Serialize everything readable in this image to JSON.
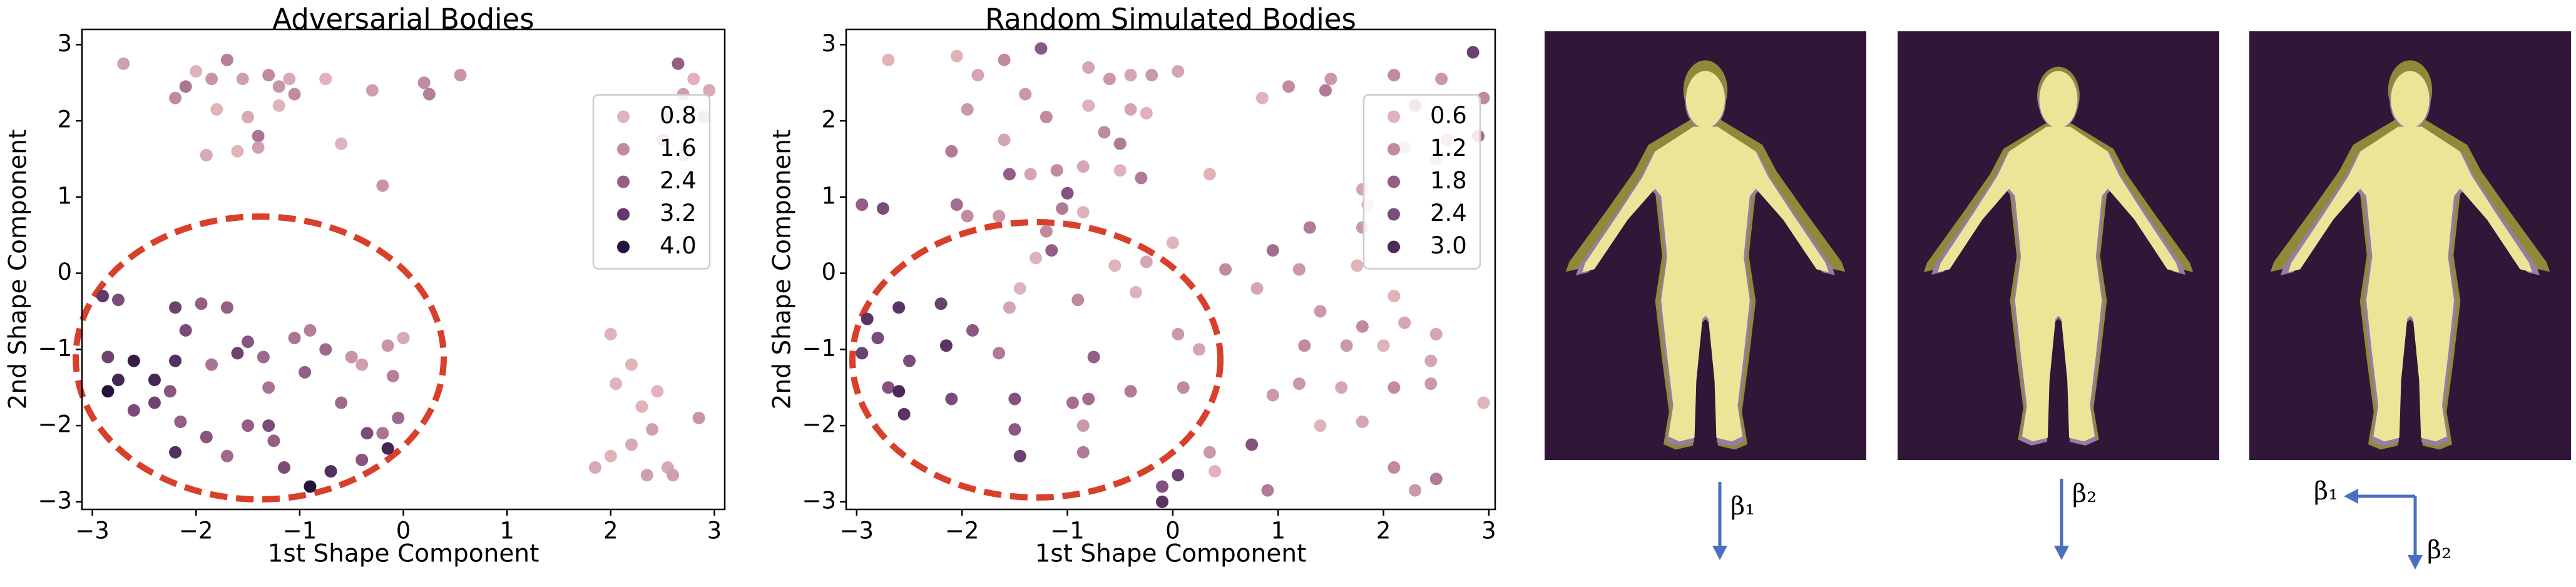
{
  "chart_data": [
    {
      "type": "scatter",
      "title": "Adversarial Bodies",
      "xlabel": "1st Shape Component",
      "ylabel": "2nd Shape Component",
      "x": [
        -2.7,
        -2.2,
        -2.1,
        -2.0,
        -1.85,
        -1.7,
        -1.8,
        -1.9,
        -1.55,
        -1.5,
        -1.4,
        -1.4,
        -1.6,
        -1.3,
        -1.1,
        -1.2,
        -1.05,
        -1.2,
        -0.75,
        -0.6,
        -0.3,
        -0.2,
        0.2,
        0.25,
        0.55,
        2.65,
        2.55,
        2.7,
        2.8,
        2.95,
        2.9,
        2.7,
        2.5,
        2.0,
        2.2,
        2.05,
        2.3,
        2.45,
        2.4,
        2.2,
        2.0,
        1.85,
        2.35,
        2.55,
        2.6,
        2.85,
        -2.9,
        -2.75,
        -2.85,
        -2.75,
        -2.6,
        -2.85,
        -2.6,
        -2.4,
        -2.4,
        -2.2,
        -2.25,
        -2.15,
        -2.2,
        -2.1,
        -2.2,
        -1.95,
        -1.85,
        -1.9,
        -1.7,
        -1.6,
        -1.7,
        -1.5,
        -1.35,
        -1.3,
        -1.25,
        -1.05,
        -0.9,
        -0.95,
        -1.15,
        -0.9,
        -0.7,
        -0.75,
        -0.6,
        -0.5,
        -0.4,
        -0.4,
        -0.35,
        -0.15,
        -0.05,
        -0.1,
        -0.15,
        0.0,
        -0.2,
        -1.3,
        -1.5
      ],
      "y": [
        2.75,
        2.3,
        2.45,
        2.65,
        2.55,
        2.8,
        2.15,
        1.55,
        2.55,
        2.05,
        1.8,
        1.65,
        1.6,
        2.6,
        2.55,
        2.45,
        2.35,
        2.2,
        2.55,
        1.7,
        2.4,
        1.15,
        2.5,
        2.35,
        2.6,
        2.75,
        2.05,
        2.35,
        2.55,
        2.4,
        2.05,
        1.55,
        1.75,
        -0.8,
        -1.2,
        -1.45,
        -1.75,
        -1.55,
        -2.05,
        -2.25,
        -2.4,
        -2.55,
        -2.65,
        -2.55,
        -2.65,
        -1.9,
        -0.3,
        -0.35,
        -1.1,
        -1.4,
        -1.15,
        -1.55,
        -1.8,
        -1.4,
        -1.7,
        -1.15,
        -1.55,
        -1.95,
        -0.45,
        -0.75,
        -2.35,
        -0.4,
        -1.2,
        -2.15,
        -0.45,
        -1.05,
        -2.4,
        -0.9,
        -1.1,
        -1.5,
        -2.2,
        -0.85,
        -0.75,
        -1.3,
        -2.55,
        -2.8,
        -2.6,
        -1.0,
        -1.7,
        -1.1,
        -1.2,
        -2.45,
        -2.1,
        -2.3,
        -1.9,
        -1.35,
        -0.95,
        -0.85,
        -2.1,
        -2.0,
        -2.0
      ],
      "hue": [
        1.2,
        1.6,
        2.0,
        0.8,
        1.4,
        1.8,
        0.6,
        1.0,
        1.2,
        1.0,
        2.0,
        1.2,
        0.6,
        1.6,
        1.0,
        1.4,
        1.6,
        0.8,
        0.8,
        0.6,
        1.2,
        1.4,
        1.6,
        1.8,
        1.4,
        2.4,
        1.4,
        1.2,
        0.8,
        1.0,
        1.6,
        1.2,
        1.6,
        0.8,
        0.6,
        0.6,
        0.8,
        0.8,
        1.2,
        1.0,
        0.8,
        1.0,
        1.2,
        1.0,
        1.2,
        1.4,
        3.2,
        2.8,
        3.0,
        3.6,
        3.8,
        4.0,
        2.8,
        3.6,
        3.0,
        3.4,
        2.6,
        2.4,
        3.0,
        2.8,
        3.4,
        2.4,
        2.0,
        2.6,
        2.4,
        3.0,
        2.2,
        2.6,
        2.2,
        2.0,
        2.4,
        2.0,
        1.8,
        2.4,
        2.8,
        4.0,
        3.4,
        2.2,
        2.2,
        1.4,
        1.2,
        2.6,
        2.8,
        3.6,
        2.2,
        1.8,
        1.4,
        1.0,
        2.0,
        2.8,
        2.4
      ],
      "xlim": [
        -3.1,
        3.1
      ],
      "ylim": [
        -3.1,
        3.2
      ],
      "xticks": [
        {
          "value": -3,
          "label": "−3"
        },
        {
          "value": -2,
          "label": "−2"
        },
        {
          "value": -1,
          "label": "−1"
        },
        0,
        1,
        2,
        3
      ],
      "yticks": [
        {
          "value": -3,
          "label": "−3"
        },
        {
          "value": -2,
          "label": "−2"
        },
        {
          "value": -1,
          "label": "−1"
        },
        0,
        1,
        2,
        3
      ],
      "legend": [
        {
          "value": 0.8,
          "color": "#dfb3b9"
        },
        {
          "value": 1.6,
          "color": "#c08aa0"
        },
        {
          "value": 2.4,
          "color": "#945e86"
        },
        {
          "value": 3.2,
          "color": "#623a69"
        },
        {
          "value": 4,
          "label": "4.0",
          "color": "#25143a"
        }
      ],
      "legend_position": "center right"
    },
    {
      "type": "scatter",
      "title": "Random Simulated Bodies",
      "xlabel": "1st Shape Component",
      "ylabel": "2nd Shape Component",
      "x": [
        -2.7,
        -2.05,
        -1.85,
        -1.6,
        -1.95,
        -2.1,
        -1.6,
        -1.4,
        -1.2,
        -1.25,
        -0.8,
        -0.6,
        -0.4,
        -0.2,
        -0.8,
        -0.65,
        -0.4,
        -0.25,
        -0.5,
        0.05,
        -1.1,
        -0.85,
        -0.5,
        -0.3,
        -1.55,
        -1.35,
        -1.0,
        -1.05,
        -0.85,
        -1.65,
        -1.95,
        -2.05,
        -2.75,
        -2.95,
        -1.3,
        -1.2,
        -1.15,
        -0.55,
        -0.25,
        0.0,
        0.35,
        0.85,
        1.1,
        1.5,
        1.45,
        2.1,
        2.3,
        2.55,
        2.85,
        2.95,
        2.9,
        2.6,
        2.5,
        2.2,
        1.8,
        1.85,
        1.8,
        1.3,
        0.95,
        0.5,
        0.8,
        1.2,
        1.75,
        1.4,
        1.8,
        2.1,
        2.2,
        2.5,
        2.0,
        1.65,
        1.25,
        2.45,
        2.1,
        2.45,
        1.2,
        1.6,
        1.8,
        1.4,
        0.95,
        0.75,
        0.9,
        0.35,
        0.1,
        0.05,
        0.25,
        0.4,
        2.1,
        2.3,
        2.5,
        2.95,
        -2.9,
        -2.8,
        -2.95,
        -2.6,
        -2.5,
        -2.7,
        -2.6,
        -2.2,
        -2.15,
        -2.1,
        -1.9,
        -1.65,
        -1.5,
        -1.5,
        -1.45,
        -0.95,
        -0.75,
        -0.8,
        -0.85,
        -0.85,
        -0.4,
        -0.35,
        -0.9,
        -1.55,
        -1.45,
        -0.1,
        0.05,
        -0.1,
        -2.55
      ],
      "y": [
        2.8,
        2.85,
        2.6,
        2.8,
        2.15,
        1.6,
        1.75,
        2.35,
        2.05,
        2.95,
        2.7,
        2.55,
        2.6,
        2.6,
        2.2,
        1.85,
        2.15,
        2.1,
        1.7,
        2.65,
        1.35,
        1.4,
        1.35,
        1.25,
        1.3,
        1.3,
        1.05,
        0.85,
        0.8,
        0.75,
        0.75,
        0.9,
        0.85,
        0.9,
        0.2,
        0.55,
        0.3,
        0.1,
        0.15,
        0.4,
        1.3,
        2.3,
        2.45,
        2.55,
        2.4,
        2.6,
        2.2,
        2.55,
        2.9,
        2.3,
        1.8,
        1.75,
        1.5,
        1.65,
        1.1,
        0.9,
        0.6,
        0.6,
        0.3,
        0.05,
        -0.2,
        0.05,
        0.1,
        -0.5,
        -0.7,
        -0.3,
        -0.65,
        -0.8,
        -0.95,
        -0.95,
        -0.95,
        -1.15,
        -1.5,
        -1.45,
        -1.45,
        -1.5,
        -1.95,
        -2.0,
        -1.6,
        -2.25,
        -2.85,
        -2.35,
        -1.5,
        -0.8,
        -1.0,
        -2.6,
        -2.55,
        -2.85,
        -2.7,
        -1.7,
        -0.6,
        -0.85,
        -1.05,
        -0.45,
        -1.15,
        -1.5,
        -1.55,
        -0.4,
        -0.95,
        -1.65,
        -0.75,
        -1.05,
        -1.65,
        -2.05,
        -2.4,
        -1.7,
        -1.1,
        -1.65,
        -2.0,
        -2.35,
        -1.55,
        -0.25,
        -0.35,
        -0.45,
        -0.2,
        -2.8,
        -2.65,
        -3.0,
        -1.85
      ],
      "hue": [
        0.6,
        0.6,
        0.8,
        1.2,
        1.0,
        1.4,
        0.8,
        1.0,
        1.2,
        2.0,
        0.8,
        1.0,
        0.8,
        1.0,
        0.6,
        1.2,
        0.8,
        0.6,
        1.4,
        0.8,
        1.2,
        0.8,
        0.6,
        1.4,
        1.8,
        0.8,
        2.2,
        1.4,
        0.6,
        1.0,
        1.2,
        1.6,
        2.4,
        1.8,
        0.6,
        1.2,
        1.8,
        0.6,
        0.8,
        0.6,
        0.3,
        0.6,
        1.2,
        1.0,
        1.4,
        1.2,
        1.6,
        1.0,
        2.6,
        1.2,
        1.6,
        1.0,
        0.8,
        0.8,
        0.8,
        0.6,
        1.0,
        1.4,
        1.6,
        1.2,
        0.8,
        1.0,
        0.6,
        1.0,
        1.2,
        0.6,
        0.8,
        0.8,
        0.6,
        1.0,
        1.2,
        0.8,
        1.2,
        1.0,
        1.0,
        0.8,
        0.8,
        0.6,
        1.0,
        2.2,
        1.4,
        1.0,
        1.2,
        1.0,
        0.8,
        0.6,
        1.2,
        1.0,
        1.4,
        0.6,
        2.8,
        2.4,
        2.6,
        2.8,
        2.4,
        2.2,
        3.0,
        2.6,
        2.8,
        2.4,
        2.0,
        1.4,
        2.2,
        2.0,
        2.6,
        1.6,
        1.8,
        1.6,
        1.0,
        1.4,
        1.4,
        0.6,
        1.2,
        0.8,
        0.6,
        2.2,
        2.6,
        2.8,
        2.8
      ],
      "xlim": [
        -3.1,
        3.06
      ],
      "ylim": [
        -3.1,
        3.2
      ],
      "xticks": [
        {
          "value": -3,
          "label": "−3"
        },
        {
          "value": -2,
          "label": "−2"
        },
        {
          "value": -1,
          "label": "−1"
        },
        0,
        1,
        2,
        3
      ],
      "yticks": [
        {
          "value": -3,
          "label": "−3"
        },
        {
          "value": -2,
          "label": "−2"
        },
        {
          "value": -1,
          "label": "−1"
        },
        0,
        1,
        2,
        3
      ],
      "legend": [
        {
          "value": 0.6,
          "color": "#dfb3b9"
        },
        {
          "value": 1.2,
          "color": "#c08aa0"
        },
        {
          "value": 1.8,
          "color": "#945e86"
        },
        {
          "value": 2.4,
          "color": "#7a4c7a"
        },
        {
          "value": 3,
          "label": "3.0",
          "color": "#4a2a58"
        }
      ],
      "legend_position": "center right"
    }
  ],
  "panels": [
    {
      "labels": [
        "β₁"
      ]
    },
    {
      "labels": [
        "β₂"
      ]
    },
    {
      "labels": [
        "β₁",
        "β₂"
      ]
    }
  ]
}
